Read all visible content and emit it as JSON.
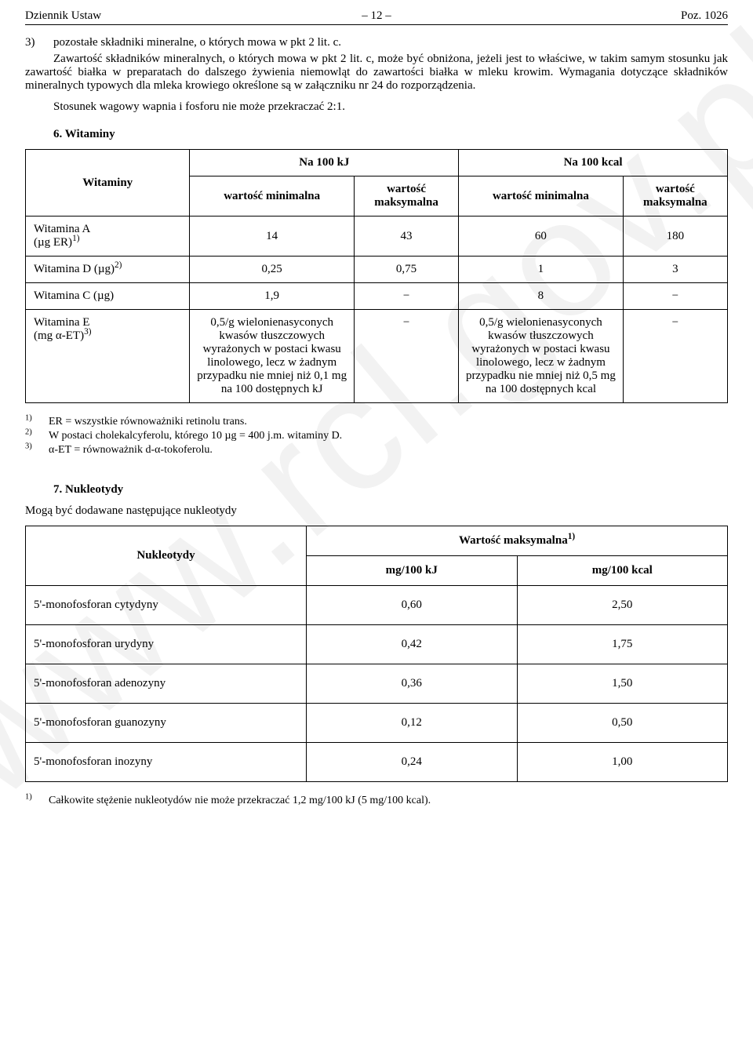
{
  "header": {
    "left": "Dziennik Ustaw",
    "center": "– 12 –",
    "right": "Poz. 1026"
  },
  "watermark": "www.rcl.gov.pl",
  "section3": {
    "number": "3)",
    "lead": "pozostałe składniki mineralne, o których mowa w pkt 2 lit. c.",
    "para1": "Zawartość składników mineralnych, o których mowa w pkt 2 lit. c, może być obniżona, jeżeli jest to właściwe, w takim samym stosunku jak zawartość białka w preparatach do dalszego żywienia niemowląt do zawartości białka w mleku krowim. Wymagania dotyczące składników mineralnych typowych dla mleka krowiego określone są w załączniku nr 24 do rozporządzenia.",
    "para2": "Stosunek wagowy wapnia i fosforu nie może przekraczać 2:1."
  },
  "vitaminsSection": {
    "title": "6. Witaminy",
    "headers": {
      "main": "Witaminy",
      "kj": "Na 100 kJ",
      "kcal": "Na 100 kcal",
      "min": "wartość minimalna",
      "max": "wartość maksymalna"
    },
    "rows": {
      "a": {
        "label_html": "Witamina A<br>(µg ER)<sup>1)</sup>",
        "kj_min": "14",
        "kj_max": "43",
        "kcal_min": "60",
        "kcal_max": "180"
      },
      "d": {
        "label_html": "Witamina D (µg)<sup>2)</sup>",
        "kj_min": "0,25",
        "kj_max": "0,75",
        "kcal_min": "1",
        "kcal_max": "3"
      },
      "c": {
        "label_html": "Witamina C (µg)",
        "kj_min": "1,9",
        "kj_max": "−",
        "kcal_min": "8",
        "kcal_max": "−"
      },
      "e": {
        "label_html": "Witamina E<br>(mg α-ET)<sup>3)</sup>",
        "kj_min": "0,5/g wielonienasyconych kwasów tłuszczowych wyrażonych w postaci kwasu linolowego, lecz w żadnym przypadku nie mniej niż 0,1 mg na 100 dostępnych kJ",
        "kj_max": "−",
        "kcal_min": "0,5/g wielonienasyconych kwasów tłuszczowych wyrażonych w postaci kwasu linolowego, lecz w żadnym przypadku nie mniej niż 0,5 mg na 100 dostępnych kcal",
        "kcal_max": "−"
      }
    },
    "footnotes": {
      "f1": "ER = wszystkie równoważniki retinolu trans.",
      "f2": "W postaci cholekalcyferolu, którego 10 µg = 400 j.m. witaminy D.",
      "f3": "α-ET = równoważnik d-α-tokoferolu."
    }
  },
  "nukSection": {
    "title": "7. Nukleotydy",
    "intro": "Mogą być dodawane następujące nukleotydy",
    "headers": {
      "main": "Nukleotydy",
      "max_html": "Wartość maksymalna<sup>1)</sup>",
      "kj": "mg/100 kJ",
      "kcal": "mg/100 kcal"
    },
    "rows": {
      "r1": {
        "label": "5'-monofosforan cytydyny",
        "kj": "0,60",
        "kcal": "2,50"
      },
      "r2": {
        "label": "5'-monofosforan urydyny",
        "kj": "0,42",
        "kcal": "1,75"
      },
      "r3": {
        "label": "5'-monofosforan adenozyny",
        "kj": "0,36",
        "kcal": "1,50"
      },
      "r4": {
        "label": "5'-monofosforan guanozyny",
        "kj": "0,12",
        "kcal": "0,50"
      },
      "r5": {
        "label": "5'-monofosforan inozyny",
        "kj": "0,24",
        "kcal": "1,00"
      }
    },
    "footnote": "Całkowite stężenie nukleotydów nie może przekraczać 1,2 mg/100 kJ (5 mg/100 kcal)."
  }
}
